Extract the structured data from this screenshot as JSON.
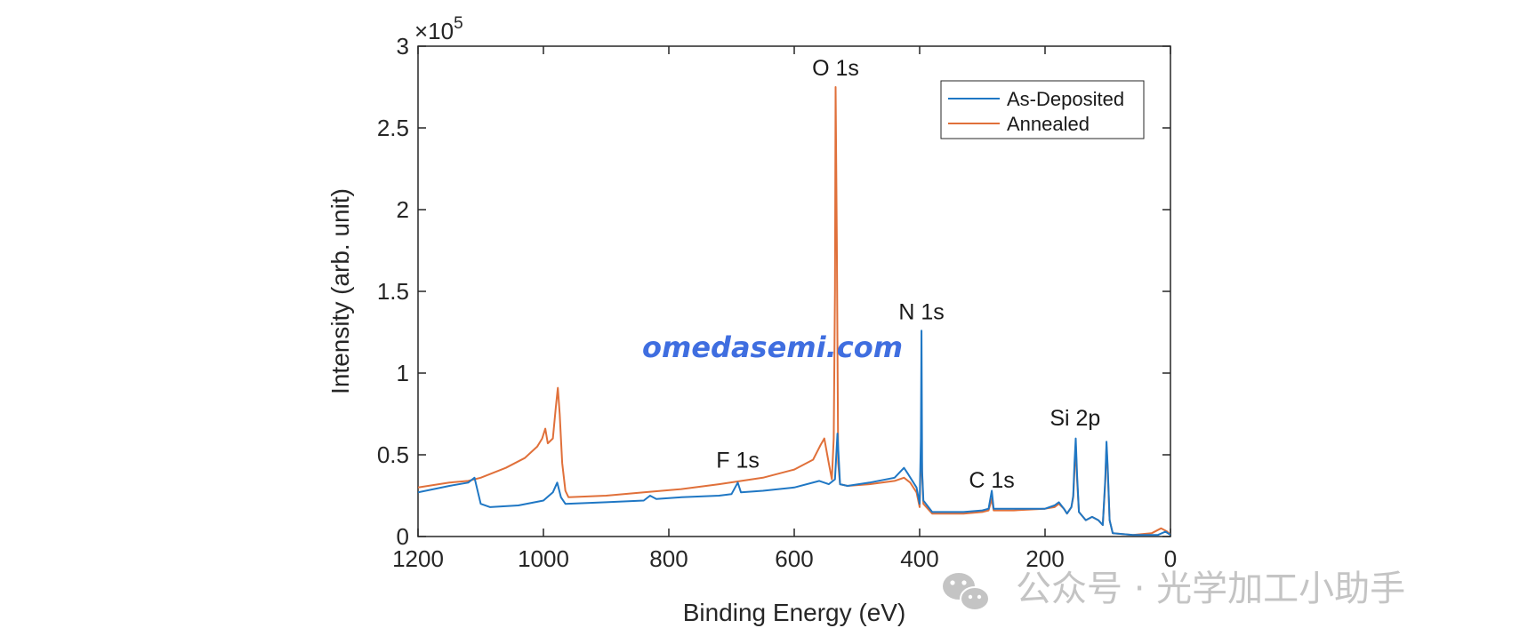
{
  "chart_data": {
    "type": "line",
    "title": "",
    "xlabel": "Binding Energy (eV)",
    "ylabel": "Intensity (arb. unit)",
    "xlim": [
      1200,
      0
    ],
    "x_reversed": true,
    "ylim": [
      0,
      3
    ],
    "y_multiplier": "×10",
    "y_multiplier_exp": "5",
    "x_ticks": [
      "1200",
      "1000",
      "800",
      "600",
      "400",
      "200",
      "0"
    ],
    "y_ticks": [
      "0",
      "0.5",
      "1",
      "1.5",
      "2",
      "2.5",
      "3"
    ],
    "legend_position": "top-right",
    "grid": false,
    "series": [
      {
        "name": "As-Deposited",
        "color": "#1f77c4",
        "points": [
          [
            1200,
            0.27
          ],
          [
            1150,
            0.31
          ],
          [
            1120,
            0.33
          ],
          [
            1110,
            0.36
          ],
          [
            1100,
            0.2
          ],
          [
            1085,
            0.18
          ],
          [
            1040,
            0.19
          ],
          [
            1000,
            0.22
          ],
          [
            985,
            0.27
          ],
          [
            978,
            0.33
          ],
          [
            972,
            0.24
          ],
          [
            965,
            0.2
          ],
          [
            900,
            0.21
          ],
          [
            840,
            0.22
          ],
          [
            830,
            0.25
          ],
          [
            820,
            0.23
          ],
          [
            780,
            0.24
          ],
          [
            720,
            0.25
          ],
          [
            700,
            0.26
          ],
          [
            690,
            0.33
          ],
          [
            685,
            0.27
          ],
          [
            650,
            0.28
          ],
          [
            600,
            0.3
          ],
          [
            560,
            0.34
          ],
          [
            545,
            0.32
          ],
          [
            535,
            0.35
          ],
          [
            531,
            0.63
          ],
          [
            527,
            0.32
          ],
          [
            515,
            0.31
          ],
          [
            480,
            0.33
          ],
          [
            440,
            0.36
          ],
          [
            425,
            0.42
          ],
          [
            418,
            0.38
          ],
          [
            405,
            0.3
          ],
          [
            400,
            0.2
          ],
          [
            398,
            0.6
          ],
          [
            397,
            1.26
          ],
          [
            396,
            0.4
          ],
          [
            394,
            0.22
          ],
          [
            380,
            0.15
          ],
          [
            330,
            0.15
          ],
          [
            300,
            0.16
          ],
          [
            290,
            0.17
          ],
          [
            285,
            0.28
          ],
          [
            282,
            0.17
          ],
          [
            250,
            0.17
          ],
          [
            200,
            0.17
          ],
          [
            185,
            0.19
          ],
          [
            178,
            0.21
          ],
          [
            170,
            0.17
          ],
          [
            165,
            0.14
          ],
          [
            158,
            0.18
          ],
          [
            155,
            0.25
          ],
          [
            153,
            0.45
          ],
          [
            151,
            0.6
          ],
          [
            149,
            0.38
          ],
          [
            146,
            0.15
          ],
          [
            135,
            0.1
          ],
          [
            125,
            0.12
          ],
          [
            115,
            0.1
          ],
          [
            108,
            0.07
          ],
          [
            104,
            0.35
          ],
          [
            102,
            0.58
          ],
          [
            100,
            0.42
          ],
          [
            97,
            0.1
          ],
          [
            92,
            0.02
          ],
          [
            60,
            0.01
          ],
          [
            20,
            0.01
          ],
          [
            8,
            0.03
          ],
          [
            0,
            0.01
          ]
        ]
      },
      {
        "name": "Annealed",
        "color": "#e0703a",
        "points": [
          [
            1200,
            0.3
          ],
          [
            1150,
            0.33
          ],
          [
            1120,
            0.34
          ],
          [
            1100,
            0.36
          ],
          [
            1060,
            0.42
          ],
          [
            1030,
            0.48
          ],
          [
            1010,
            0.55
          ],
          [
            1002,
            0.6
          ],
          [
            997,
            0.66
          ],
          [
            993,
            0.57
          ],
          [
            985,
            0.6
          ],
          [
            980,
            0.8
          ],
          [
            977,
            0.91
          ],
          [
            974,
            0.75
          ],
          [
            970,
            0.45
          ],
          [
            965,
            0.28
          ],
          [
            960,
            0.24
          ],
          [
            900,
            0.25
          ],
          [
            840,
            0.27
          ],
          [
            780,
            0.29
          ],
          [
            720,
            0.32
          ],
          [
            650,
            0.36
          ],
          [
            600,
            0.41
          ],
          [
            570,
            0.47
          ],
          [
            558,
            0.56
          ],
          [
            552,
            0.6
          ],
          [
            545,
            0.45
          ],
          [
            540,
            0.35
          ],
          [
            537,
            0.6
          ],
          [
            535,
            1.5
          ],
          [
            534,
            2.75
          ],
          [
            532,
            1.8
          ],
          [
            530,
            0.45
          ],
          [
            527,
            0.32
          ],
          [
            515,
            0.31
          ],
          [
            480,
            0.32
          ],
          [
            440,
            0.34
          ],
          [
            425,
            0.36
          ],
          [
            415,
            0.33
          ],
          [
            405,
            0.27
          ],
          [
            400,
            0.18
          ],
          [
            398,
            0.5
          ],
          [
            397,
            0.58
          ],
          [
            396,
            0.38
          ],
          [
            394,
            0.2
          ],
          [
            380,
            0.14
          ],
          [
            330,
            0.14
          ],
          [
            300,
            0.15
          ],
          [
            290,
            0.16
          ],
          [
            285,
            0.23
          ],
          [
            282,
            0.16
          ],
          [
            250,
            0.16
          ],
          [
            200,
            0.17
          ],
          [
            185,
            0.18
          ],
          [
            178,
            0.2
          ],
          [
            170,
            0.17
          ],
          [
            165,
            0.14
          ],
          [
            158,
            0.18
          ],
          [
            155,
            0.24
          ],
          [
            153,
            0.4
          ],
          [
            151,
            0.56
          ],
          [
            149,
            0.35
          ],
          [
            146,
            0.15
          ],
          [
            135,
            0.1
          ],
          [
            125,
            0.12
          ],
          [
            115,
            0.1
          ],
          [
            108,
            0.07
          ],
          [
            104,
            0.33
          ],
          [
            102,
            0.55
          ],
          [
            100,
            0.4
          ],
          [
            97,
            0.1
          ],
          [
            92,
            0.02
          ],
          [
            60,
            0.01
          ],
          [
            30,
            0.02
          ],
          [
            15,
            0.05
          ],
          [
            5,
            0.03
          ],
          [
            0,
            0.01
          ]
        ]
      }
    ],
    "annotations": [
      {
        "text": "O 1s",
        "x": 534,
        "y": 2.82
      },
      {
        "text": "N 1s",
        "x": 397,
        "y": 1.33
      },
      {
        "text": "F 1s",
        "x": 690,
        "y": 0.42
      },
      {
        "text": "C 1s",
        "x": 285,
        "y": 0.3
      },
      {
        "text": "Si 2p",
        "x": 152,
        "y": 0.68
      }
    ]
  },
  "watermarks": {
    "site": "omedasemi.com",
    "wechat": "公众号 · 光学加工小助手",
    "wechat_icon": "wechat-icon"
  }
}
